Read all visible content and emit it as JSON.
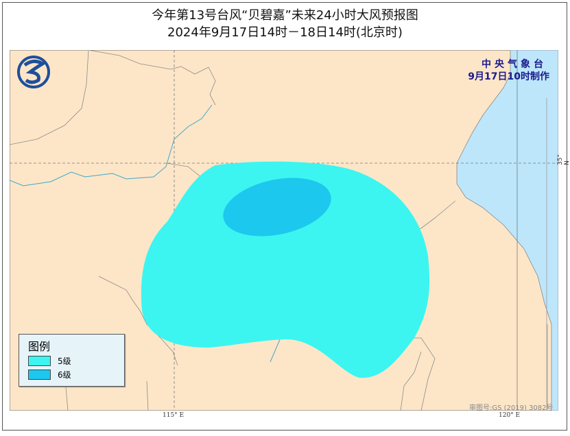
{
  "title": "今年第13号台风“贝碧嘉”未来24小时大风预报图",
  "subtitle": "2024年9月17日14时－18日14时(北京时)",
  "agency": "中央气象台",
  "issued": "9月17日10时制作",
  "legend": {
    "title": "图例",
    "items": [
      {
        "label": "5级",
        "color": "#3cf5f0"
      },
      {
        "label": "6级",
        "color": "#1cc8ee"
      }
    ]
  },
  "axes": {
    "lon_ticks": [
      "115° E",
      "120° E"
    ],
    "lat_ticks": [
      "35° N"
    ]
  },
  "approval": "审图号:GS (2019) 3082号",
  "colors": {
    "land": "#fde6c8",
    "sea": "#bde6fb",
    "logo": "#1f4f9a"
  }
}
